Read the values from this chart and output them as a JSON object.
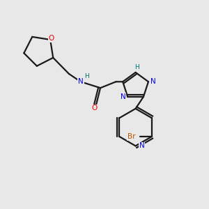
{
  "background_color": "#e8e8e8",
  "bond_color": "#1a1a1a",
  "N_color": "#0000ee",
  "O_color": "#ee0000",
  "H_color": "#007070",
  "Br_color": "#bb5500",
  "lw": 1.6,
  "dbl_off": 0.008,
  "figsize": [
    3.0,
    3.0
  ],
  "dpi": 100,
  "xlim": [
    0,
    1
  ],
  "ylim": [
    0,
    1
  ]
}
